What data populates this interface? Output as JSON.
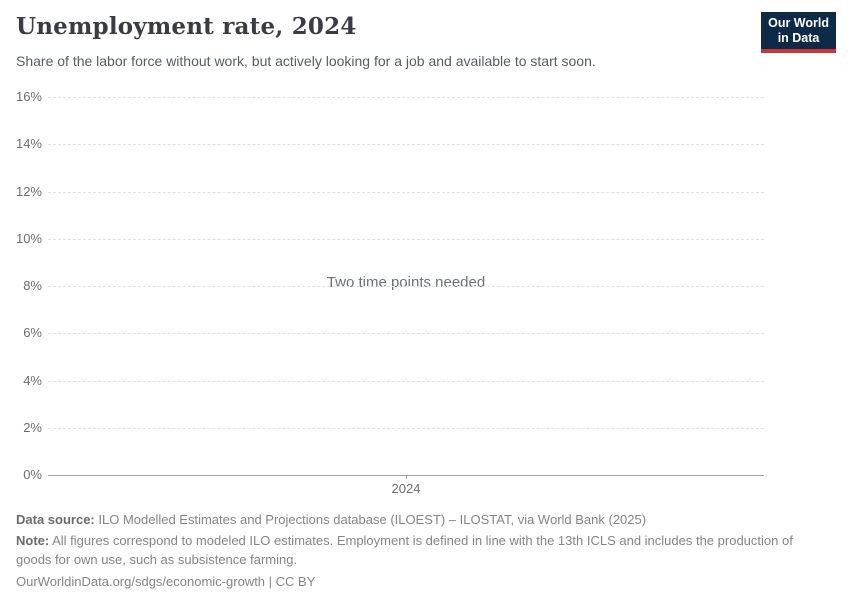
{
  "header": {
    "title": "Unemployment rate, 2024",
    "subtitle": "Share of the labor force without work, but actively looking for a job and available to start soon.",
    "logo": {
      "line1": "Our World",
      "line2": "in Data"
    }
  },
  "chart_data": {
    "type": "line",
    "title": "Unemployment rate, 2024",
    "series": [],
    "empty_message": "Two time points needed",
    "x_ticks": [
      "2024"
    ],
    "y_ticks": [
      16,
      14,
      12,
      10,
      8,
      6,
      4,
      2,
      0
    ],
    "y_unit": "%",
    "ylim": [
      0,
      16
    ],
    "xlabel": "",
    "ylabel": "",
    "grid": "horizontal dashed gridlines",
    "legend": "none"
  },
  "footer": {
    "data_source_label": "Data source:",
    "data_source_text": "ILO Modelled Estimates and Projections database (ILOEST) – ILOSTAT, via World Bank (2025)",
    "note_label": "Note:",
    "note_text": "All figures correspond to modeled ILO estimates. Employment is defined in line with the 13th ICLS and includes the production of goods for own use, such as subsistence farming.",
    "citation": "OurWorldinData.org/sdgs/economic-growth | CC BY"
  },
  "colors": {
    "logo_bg": "#0d2b49",
    "logo_accent": "#cb3537",
    "title_text": "#3b3b44",
    "axis_text": "#6d6d6d",
    "gridline": "#e2e2e2",
    "axis_line": "#a3a3a3"
  }
}
